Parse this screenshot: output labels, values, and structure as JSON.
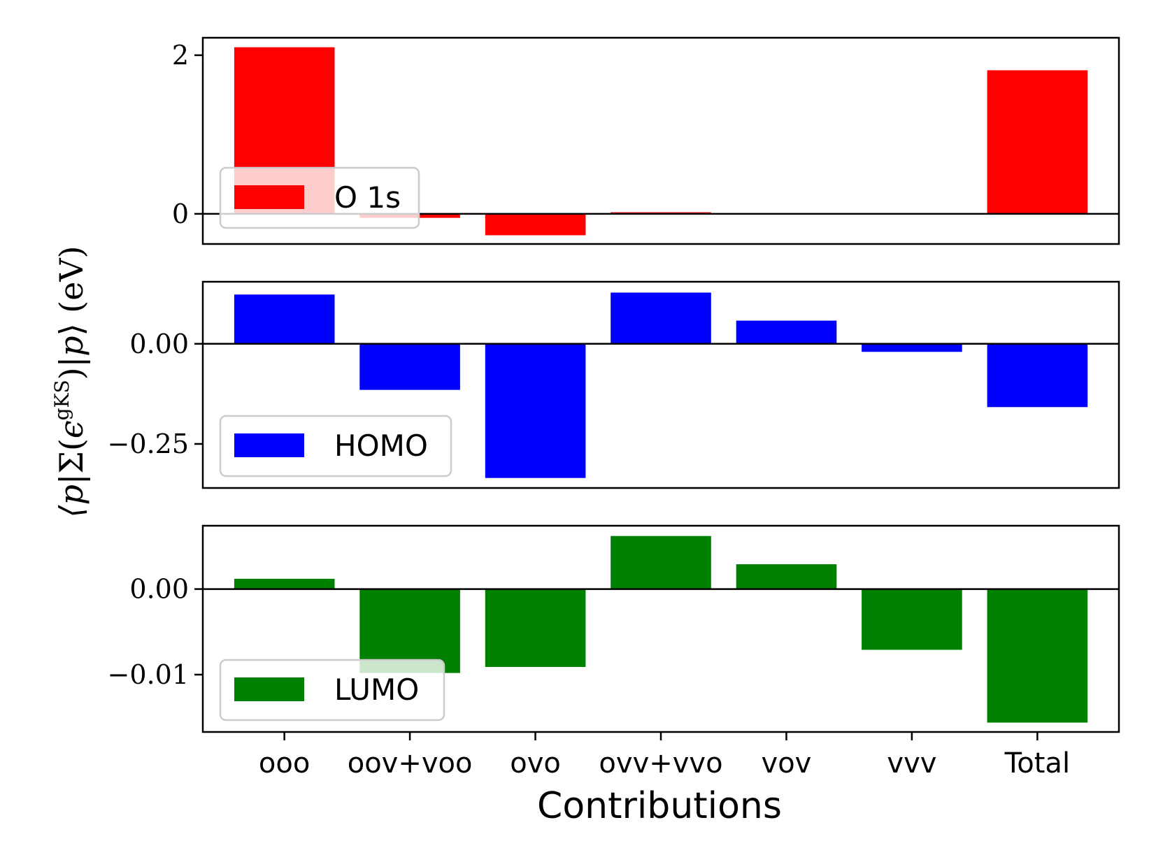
{
  "chart_data": {
    "type": "bar",
    "xlabel": "Contributions",
    "ylabel": "⟨p|Σ(ϵ^gKS)|p⟩ (eV)",
    "categories": [
      "ooo",
      "oov+voo",
      "ovo",
      "ovv+vvo",
      "vov",
      "vvv",
      "Total"
    ],
    "panels": [
      {
        "name": "O 1s",
        "color": "#ff0000",
        "values": [
          2.1,
          -0.05,
          -0.27,
          0.02,
          0.0,
          0.0,
          1.81
        ],
        "ylim": [
          -0.38,
          2.22
        ],
        "yticks": [
          0,
          2
        ],
        "ytick_labels": [
          "0",
          "2"
        ],
        "legend": "top-left"
      },
      {
        "name": "HOMO",
        "color": "#0000ff",
        "values": [
          0.123,
          -0.115,
          -0.335,
          0.128,
          0.058,
          -0.02,
          -0.158
        ],
        "ylim": [
          -0.36,
          0.155
        ],
        "yticks": [
          0.0,
          -0.25
        ],
        "ytick_labels": [
          "0.00",
          "−0.25"
        ],
        "legend": "lower-left"
      },
      {
        "name": "LUMO",
        "color": "#008000",
        "values": [
          0.0012,
          -0.0098,
          -0.0091,
          0.0062,
          0.0029,
          -0.0071,
          -0.0156
        ],
        "ylim": [
          -0.0167,
          0.0074
        ],
        "yticks": [
          0.0,
          -0.01
        ],
        "ytick_labels": [
          "0.00",
          "−0.01"
        ],
        "legend": "lower-left"
      }
    ]
  }
}
